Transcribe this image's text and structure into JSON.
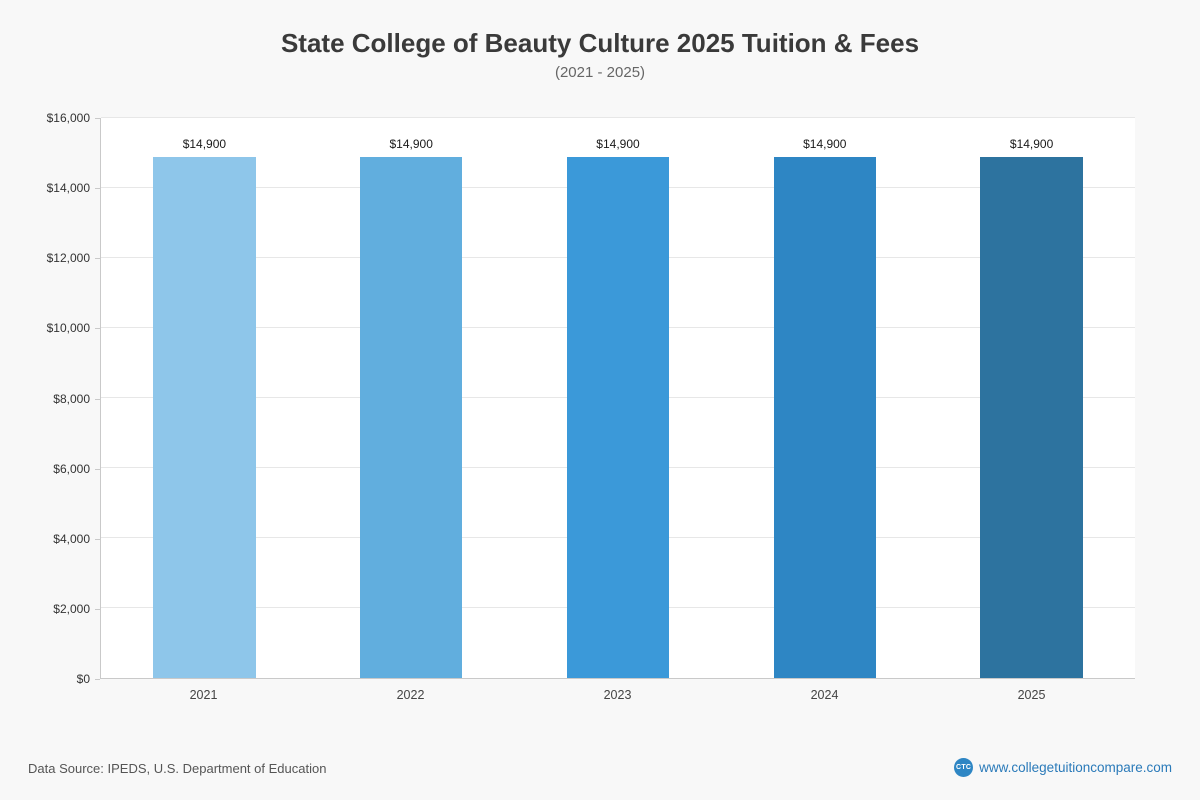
{
  "chart_data": {
    "type": "bar",
    "title": "State College of Beauty Culture 2025 Tuition & Fees",
    "subtitle": "(2021 - 2025)",
    "categories": [
      "2021",
      "2022",
      "2023",
      "2024",
      "2025"
    ],
    "values": [
      14900,
      14900,
      14900,
      14900,
      14900
    ],
    "value_labels": [
      "$14,900",
      "$14,900",
      "$14,900",
      "$14,900",
      "$14,900"
    ],
    "bar_colors": [
      "#8ec6ea",
      "#61aede",
      "#3b99d9",
      "#2e86c4",
      "#2d739f"
    ],
    "ylim": [
      0,
      16000
    ],
    "ytick_step": 2000,
    "ytick_labels": [
      "$0",
      "$2,000",
      "$4,000",
      "$6,000",
      "$8,000",
      "$10,000",
      "$12,000",
      "$14,000",
      "$16,000"
    ],
    "xlabel": "",
    "ylabel": "",
    "grid": true,
    "legend": "none",
    "plot_background": "#ffffff",
    "page_background": "#f8f8f8"
  },
  "footer": {
    "data_source": "Data Source: IPEDS, U.S. Department of Education",
    "website_label": "www.collegetuitioncompare.com",
    "logo_text": "CTC",
    "link_color": "#2a7ab9",
    "logo_color": "#2e86c4"
  }
}
